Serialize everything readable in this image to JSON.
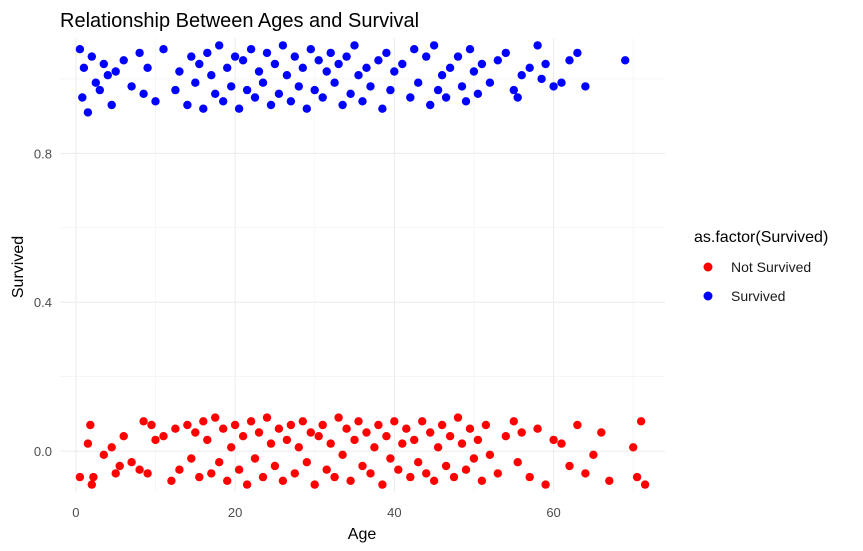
{
  "chart_data": {
    "type": "scatter",
    "title": "Relationship Between Ages and Survival",
    "xlabel": "Age",
    "ylabel": "Survived",
    "xlim": [
      -2,
      74
    ],
    "ylim": [
      -0.11,
      1.11
    ],
    "x_ticks": [
      0,
      20,
      40,
      60
    ],
    "y_ticks": [
      0.0,
      0.4,
      0.8
    ],
    "x_tick_labels": [
      "0",
      "20",
      "40",
      "60"
    ],
    "y_tick_labels": [
      "0.0",
      "0.4",
      "0.8"
    ],
    "grid": true,
    "jitter": 0.1,
    "legend": {
      "title": "as.factor(Survived)",
      "placement": "right",
      "entries": [
        "Not Survived",
        "Survived"
      ]
    },
    "colors": {
      "Not Survived": "#ff0000",
      "Survived": "#0000ff"
    },
    "series": [
      {
        "name": "Not Survived",
        "class_value": 0,
        "color": "#ff0000",
        "x": [
          0.5,
          1.5,
          1.8,
          2,
          2.2,
          3.5,
          4.5,
          5,
          5.5,
          6,
          7,
          8,
          8.5,
          9,
          9.5,
          10,
          11,
          12,
          12.5,
          13,
          14,
          14.5,
          15,
          15.5,
          16,
          16.5,
          17,
          17.5,
          18,
          18.5,
          19,
          19.5,
          20,
          20.5,
          21,
          21.5,
          22,
          22.5,
          23,
          23.5,
          24,
          24.5,
          25,
          25.5,
          26,
          26.5,
          27,
          27.5,
          28,
          28.5,
          29,
          29.5,
          30,
          30.5,
          31,
          31.5,
          32,
          32.5,
          33,
          33.5,
          34,
          34.5,
          35,
          35.5,
          36,
          36.5,
          37,
          37.5,
          38,
          38.5,
          39,
          39.5,
          40,
          40.5,
          41,
          41.5,
          42,
          42.5,
          43,
          43.5,
          44,
          44.5,
          45,
          45.5,
          46,
          46.5,
          47,
          47.5,
          48,
          48.5,
          49,
          49.5,
          50,
          50.5,
          51,
          51.5,
          52,
          53,
          54,
          55,
          55.5,
          56,
          57,
          58,
          59,
          60,
          61,
          62,
          63,
          64,
          65,
          66,
          67,
          70,
          70.5,
          71,
          71.5
        ],
        "y": [
          -0.07,
          0.02,
          0.07,
          -0.09,
          -0.07,
          -0.01,
          0.01,
          -0.06,
          -0.04,
          0.04,
          -0.03,
          -0.05,
          0.08,
          -0.06,
          0.07,
          0.03,
          0.04,
          -0.08,
          0.06,
          -0.05,
          0.07,
          -0.02,
          0.05,
          -0.07,
          0.08,
          0.03,
          -0.06,
          0.09,
          -0.03,
          0.06,
          -0.08,
          0.01,
          0.07,
          -0.05,
          0.04,
          -0.09,
          0.08,
          -0.02,
          0.05,
          -0.07,
          0.09,
          0.02,
          -0.04,
          0.06,
          -0.08,
          0.03,
          0.07,
          -0.06,
          0.01,
          0.08,
          -0.03,
          0.05,
          -0.09,
          0.04,
          0.07,
          -0.05,
          0.02,
          -0.07,
          0.09,
          -0.01,
          0.06,
          -0.08,
          0.03,
          0.08,
          -0.04,
          0.05,
          -0.06,
          0.01,
          0.07,
          -0.09,
          0.04,
          -0.02,
          0.08,
          -0.05,
          0.02,
          0.06,
          -0.07,
          0.03,
          -0.03,
          0.08,
          -0.06,
          0.05,
          -0.08,
          0.01,
          0.07,
          -0.04,
          0.04,
          -0.07,
          0.09,
          0.02,
          -0.05,
          0.06,
          -0.02,
          0.03,
          -0.08,
          0.07,
          -0.01,
          -0.06,
          0.04,
          0.08,
          -0.03,
          0.05,
          -0.07,
          0.06,
          -0.09,
          0.03,
          0.02,
          -0.04,
          0.07,
          -0.06,
          -0.01,
          0.05,
          -0.08,
          0.01,
          -0.07,
          0.08,
          -0.09
        ]
      },
      {
        "name": "Survived",
        "class_value": 1,
        "color": "#0000ff",
        "x": [
          0.5,
          0.8,
          1,
          1.5,
          2,
          2.5,
          3,
          3.5,
          4,
          4.5,
          5,
          6,
          7,
          8,
          8.5,
          9,
          10,
          11,
          12.5,
          13,
          14,
          14.5,
          15,
          15.5,
          16,
          16.5,
          17,
          17.5,
          18,
          18.5,
          19,
          19.5,
          20,
          20.5,
          21,
          21.5,
          22,
          22.5,
          23,
          23.5,
          24,
          24.5,
          25,
          25.5,
          26,
          26.5,
          27,
          27.5,
          28,
          28.5,
          29,
          29.5,
          30,
          30.5,
          31,
          31.5,
          32,
          32.5,
          33,
          33.5,
          34,
          34.5,
          35,
          35.5,
          36,
          36.5,
          37,
          38,
          38.5,
          39,
          39.5,
          40,
          41,
          42,
          42.5,
          43,
          44,
          44.5,
          45,
          45.5,
          46,
          46.5,
          47,
          48,
          48.5,
          49,
          49.5,
          50,
          50.5,
          51,
          52,
          53,
          54,
          55,
          55.5,
          56,
          57,
          58,
          58.5,
          59,
          60,
          61,
          62,
          63,
          64,
          69
        ],
        "y": [
          1.08,
          0.95,
          1.03,
          0.91,
          1.06,
          0.99,
          0.97,
          1.04,
          1.01,
          0.93,
          1.02,
          1.05,
          0.98,
          1.07,
          0.96,
          1.03,
          0.94,
          1.08,
          0.97,
          1.02,
          0.93,
          1.06,
          0.99,
          1.04,
          0.92,
          1.07,
          1.01,
          0.96,
          1.09,
          0.94,
          1.03,
          0.98,
          1.06,
          0.92,
          1.05,
          0.97,
          1.08,
          0.95,
          1.02,
          0.99,
          1.07,
          0.93,
          1.04,
          0.96,
          1.09,
          1.01,
          0.94,
          1.06,
          0.98,
          1.03,
          0.92,
          1.08,
          0.97,
          1.05,
          0.95,
          1.02,
          1.07,
          0.99,
          1.04,
          0.93,
          1.06,
          0.96,
          1.09,
          1.01,
          0.94,
          1.03,
          0.98,
          1.05,
          0.92,
          1.07,
          0.97,
          1.02,
          1.04,
          0.95,
          1.08,
          0.99,
          1.06,
          0.93,
          1.09,
          0.97,
          1.01,
          0.95,
          1.03,
          1.06,
          0.98,
          0.94,
          1.08,
          1.02,
          0.96,
          1.04,
          0.99,
          1.05,
          1.07,
          0.97,
          0.95,
          1.01,
          1.03,
          1.09,
          1.0,
          1.04,
          0.98,
          0.99,
          1.05,
          1.07,
          0.98,
          1.05
        ]
      }
    ]
  }
}
